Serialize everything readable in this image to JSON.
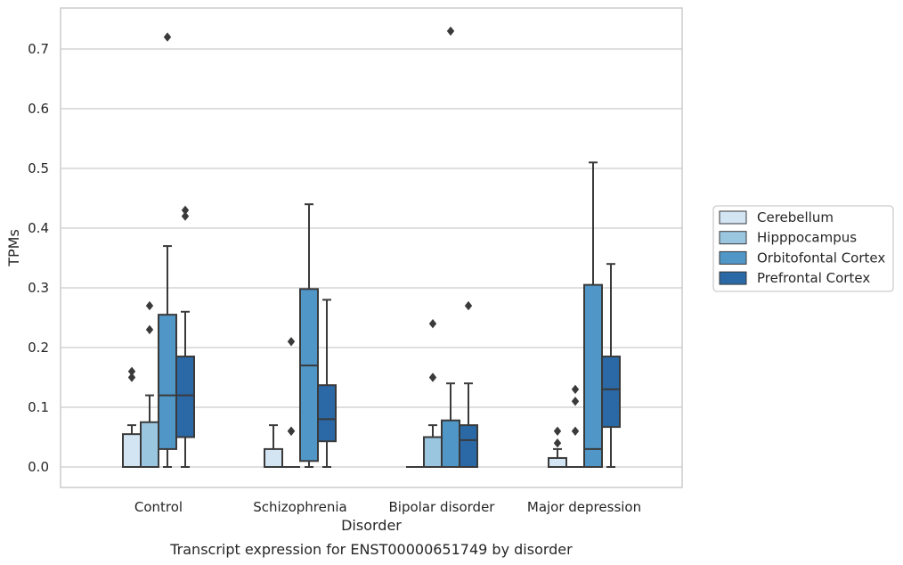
{
  "chart_data": {
    "type": "boxplot",
    "xlabel": "Disorder",
    "ylabel": "TPMs",
    "caption": "Transcript expression for ENST00000651749 by disorder",
    "ylim": [
      -0.035,
      0.772
    ],
    "yticks": [
      0.0,
      0.1,
      0.2,
      0.3,
      0.4,
      0.5,
      0.6,
      0.7
    ],
    "ytick_labels": [
      "0.0",
      "0.1",
      "0.2",
      "0.3",
      "0.4",
      "0.5",
      "0.6",
      "0.7"
    ],
    "grid": "horizontal",
    "legend_position": "right",
    "categories": [
      "Control",
      "Schizophrenia",
      "Bipolar disorder",
      "Major depression"
    ],
    "series": [
      {
        "name": "Cerebellum",
        "color": "#d3e4f3",
        "boxes": [
          {
            "q1": 0.0,
            "median": 0.0,
            "q3": 0.055,
            "whisker_low": 0.0,
            "whisker_high": 0.07,
            "outliers": [
              0.15,
              0.16
            ]
          },
          {
            "q1": 0.0,
            "median": 0.0,
            "q3": 0.03,
            "whisker_low": 0.0,
            "whisker_high": 0.07,
            "outliers": []
          },
          {
            "q1": 0.0,
            "median": 0.0,
            "q3": 0.0,
            "whisker_low": 0.0,
            "whisker_high": 0.0,
            "outliers": []
          },
          {
            "q1": 0.0,
            "median": 0.0,
            "q3": 0.015,
            "whisker_low": 0.0,
            "whisker_high": 0.03,
            "outliers": [
              0.04,
              0.06
            ]
          }
        ]
      },
      {
        "name": "Hipppocampus",
        "color": "#9ac6e0",
        "boxes": [
          {
            "q1": 0.0,
            "median": 0.0,
            "q3": 0.075,
            "whisker_low": 0.0,
            "whisker_high": 0.12,
            "outliers": [
              0.23,
              0.27
            ]
          },
          {
            "q1": 0.0,
            "median": 0.0,
            "q3": 0.0,
            "whisker_low": 0.0,
            "whisker_high": 0.0,
            "outliers": [
              0.06,
              0.06,
              0.21
            ]
          },
          {
            "q1": 0.0,
            "median": 0.0,
            "q3": 0.05,
            "whisker_low": 0.0,
            "whisker_high": 0.07,
            "outliers": [
              0.15,
              0.24
            ]
          },
          {
            "q1": 0.0,
            "median": 0.0,
            "q3": 0.0,
            "whisker_low": 0.0,
            "whisker_high": 0.0,
            "outliers": [
              0.06,
              0.11,
              0.13
            ]
          }
        ]
      },
      {
        "name": "Orbitofontal Cortex",
        "color": "#5096c6",
        "boxes": [
          {
            "q1": 0.03,
            "median": 0.12,
            "q3": 0.255,
            "whisker_low": 0.0,
            "whisker_high": 0.37,
            "outliers": [
              0.72
            ]
          },
          {
            "q1": 0.01,
            "median": 0.17,
            "q3": 0.298,
            "whisker_low": 0.0,
            "whisker_high": 0.44,
            "outliers": []
          },
          {
            "q1": 0.0,
            "median": 0.0,
            "q3": 0.078,
            "whisker_low": 0.0,
            "whisker_high": 0.14,
            "outliers": [
              0.73
            ]
          },
          {
            "q1": 0.0,
            "median": 0.03,
            "q3": 0.305,
            "whisker_low": 0.0,
            "whisker_high": 0.51,
            "outliers": []
          }
        ]
      },
      {
        "name": "Prefrontal Cortex",
        "color": "#2a68a6",
        "boxes": [
          {
            "q1": 0.05,
            "median": 0.12,
            "q3": 0.185,
            "whisker_low": 0.0,
            "whisker_high": 0.26,
            "outliers": [
              0.42,
              0.43
            ]
          },
          {
            "q1": 0.043,
            "median": 0.08,
            "q3": 0.137,
            "whisker_low": 0.0,
            "whisker_high": 0.28,
            "outliers": []
          },
          {
            "q1": 0.0,
            "median": 0.045,
            "q3": 0.07,
            "whisker_low": 0.0,
            "whisker_high": 0.14,
            "outliers": [
              0.27
            ]
          },
          {
            "q1": 0.067,
            "median": 0.13,
            "q3": 0.185,
            "whisker_low": 0.0,
            "whisker_high": 0.34,
            "outliers": []
          }
        ]
      }
    ]
  }
}
